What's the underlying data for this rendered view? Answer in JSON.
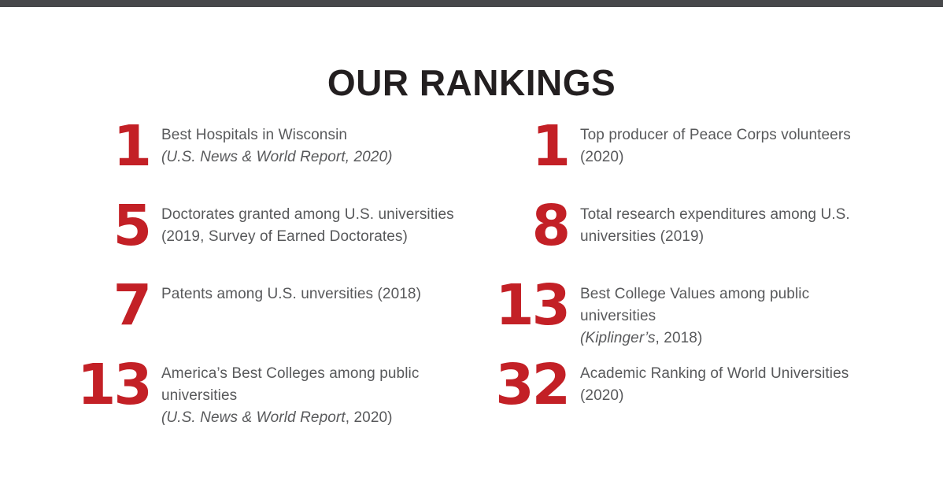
{
  "page": {
    "title": "OUR RANKINGS",
    "top_bar_color": "#47484b",
    "accent_color": "#c32026",
    "text_color": "#58595b",
    "title_color": "#231f20"
  },
  "rankings": {
    "left": [
      {
        "number": "1",
        "line1": "Best Hospitals in Wisconsin",
        "line2": [
          {
            "text": "(U.S. News & World Report, 2020)",
            "italic": true
          }
        ]
      },
      {
        "number": "5",
        "line1": "Doctorates granted among U.S. universities",
        "line2": [
          {
            "text": "(2019, Survey of Earned Doctorates)",
            "italic": false
          }
        ]
      },
      {
        "number": "7",
        "line1": "Patents among U.S. unversities (2018)",
        "line2": []
      },
      {
        "number": "13",
        "line1": "America’s Best Colleges among public universities",
        "line2": [
          {
            "text": "(U.S. News & World Report",
            "italic": true
          },
          {
            "text": ", 2020)",
            "italic": false
          }
        ]
      }
    ],
    "right": [
      {
        "number": "1",
        "line1": "Top producer of Peace Corps volunteers",
        "line2": [
          {
            "text": "(2020)",
            "italic": false
          }
        ]
      },
      {
        "number": "8",
        "line1": "Total research expenditures among U.S.",
        "line2": [
          {
            "text": "universities (2019)",
            "italic": false
          }
        ]
      },
      {
        "number": "13",
        "line1": "Best College Values among public universities",
        "line2": [
          {
            "text": "(Kiplinger’s",
            "italic": true
          },
          {
            "text": ", 2018)",
            "italic": false
          }
        ]
      },
      {
        "number": "32",
        "line1": "Academic Ranking of World Universities (2020)",
        "line2": []
      }
    ]
  }
}
